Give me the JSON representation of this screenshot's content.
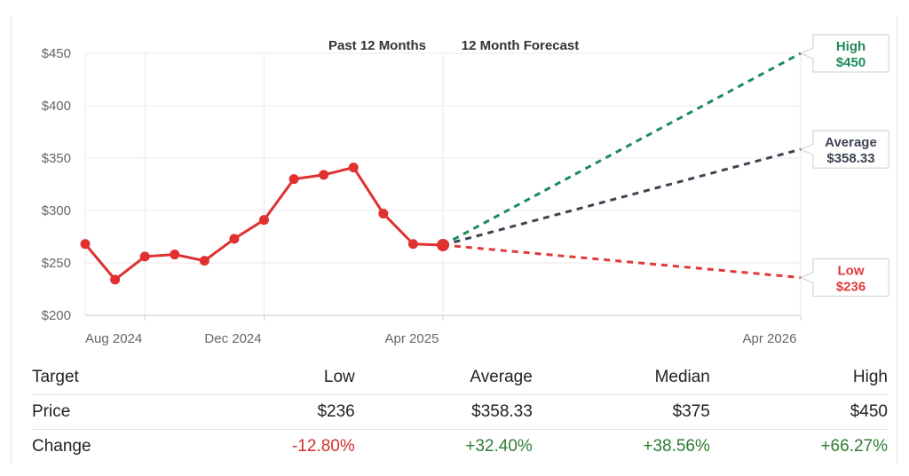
{
  "chart_data": {
    "type": "line",
    "title_left": "Past 12 Months",
    "title_right": "12 Month Forecast",
    "ylim": [
      200,
      450
    ],
    "y_ticks": [
      200,
      250,
      300,
      350,
      400,
      450
    ],
    "y_tick_labels": [
      "$200",
      "$250",
      "$300",
      "$350",
      "$400",
      "$450"
    ],
    "x_tick_labels": [
      "Aug 2024",
      "Dec 2024",
      "Apr 2025",
      "Apr 2026"
    ],
    "x_tick_months": [
      2,
      6,
      12,
      24
    ],
    "history": {
      "name": "Price",
      "months": [
        0,
        1,
        2,
        3,
        4,
        5,
        6,
        7,
        8,
        9,
        10,
        11,
        12
      ],
      "values": [
        268,
        234,
        256,
        258,
        252,
        273,
        291,
        330,
        334,
        341,
        297,
        268,
        267
      ]
    },
    "forecast": {
      "start_month": 12,
      "end_month": 24,
      "start_value": 267,
      "series": [
        {
          "name": "High",
          "label": "$450",
          "value": 450,
          "color": "#1e8a5a"
        },
        {
          "name": "Average",
          "label": "$358.33",
          "value": 358.33,
          "color": "#3d4451"
        },
        {
          "name": "Low",
          "label": "$236",
          "value": 236,
          "color": "#e03a3a"
        }
      ]
    },
    "colors": {
      "history": "#e03030",
      "grid": "#e9e9e9",
      "axis": "#cccccc"
    }
  },
  "table": {
    "headers": [
      "Target",
      "Low",
      "Average",
      "Median",
      "High"
    ],
    "rows": [
      {
        "label": "Price",
        "values": [
          "$236",
          "$358.33",
          "$375",
          "$450"
        ]
      },
      {
        "label": "Change",
        "values": [
          "-12.80%",
          "+32.40%",
          "+38.56%",
          "+66.27%"
        ]
      }
    ]
  }
}
